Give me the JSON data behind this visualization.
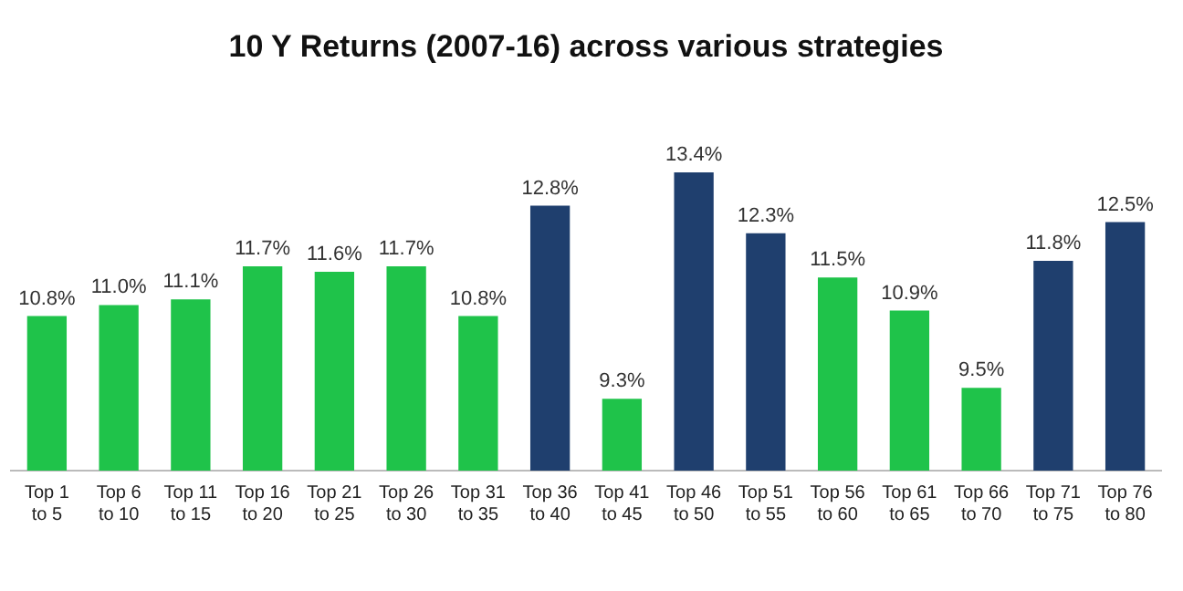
{
  "chart_data": {
    "type": "bar",
    "title": "10 Y Returns (2007-16) across various strategies",
    "categories": [
      "Top 1 to 5",
      "Top 6 to 10",
      "Top 11 to 15",
      "Top 16 to 20",
      "Top 21 to 25",
      "Top 26 to 30",
      "Top 31 to 35",
      "Top 36 to 40",
      "Top 41 to 45",
      "Top 46 to 50",
      "Top 51 to 55",
      "Top 56 to 60",
      "Top 61 to 65",
      "Top 66 to 70",
      "Top 71 to 75",
      "Top 76 to 80"
    ],
    "values": [
      10.8,
      11.0,
      11.1,
      11.7,
      11.6,
      11.7,
      10.8,
      12.8,
      9.3,
      13.4,
      12.3,
      11.5,
      10.9,
      9.5,
      11.8,
      12.5
    ],
    "value_labels": [
      "10.8%",
      "11.0%",
      "11.1%",
      "11.7%",
      "11.6%",
      "11.7%",
      "10.8%",
      "12.8%",
      "9.3%",
      "13.4%",
      "12.3%",
      "11.5%",
      "10.9%",
      "9.5%",
      "11.8%",
      "12.5%"
    ],
    "colors": [
      "#1fc34a",
      "#1fc34a",
      "#1fc34a",
      "#1fc34a",
      "#1fc34a",
      "#1fc34a",
      "#1fc34a",
      "#1f3f6e",
      "#1fc34a",
      "#1f3f6e",
      "#1f3f6e",
      "#1fc34a",
      "#1fc34a",
      "#1fc34a",
      "#1f3f6e",
      "#1f3f6e"
    ],
    "grid": false,
    "legend": false
  }
}
